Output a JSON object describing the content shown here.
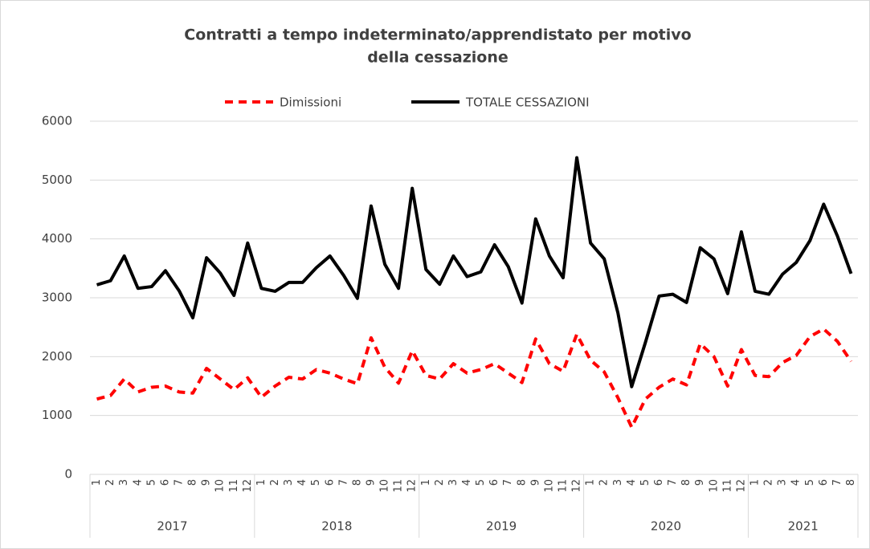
{
  "chart_data": {
    "type": "line",
    "title": [
      "Contratti a tempo indeterminato/apprendistato  per motivo",
      "della cessazione"
    ],
    "category_groups": [
      {
        "label": "2017",
        "categories": [
          1,
          2,
          3,
          4,
          5,
          6,
          7,
          8,
          9,
          10,
          11,
          12
        ]
      },
      {
        "label": "2018",
        "categories": [
          1,
          2,
          3,
          4,
          5,
          6,
          7,
          8,
          9,
          10,
          11,
          12
        ]
      },
      {
        "label": "2019",
        "categories": [
          1,
          2,
          3,
          4,
          5,
          6,
          7,
          8,
          9,
          10,
          11,
          12
        ]
      },
      {
        "label": "2020",
        "categories": [
          1,
          2,
          3,
          4,
          5,
          6,
          7,
          8,
          9,
          10,
          11,
          12
        ]
      },
      {
        "label": "2021",
        "categories": [
          1,
          2,
          3,
          4,
          5,
          6,
          7,
          8
        ]
      }
    ],
    "series": [
      {
        "name": "Dimissioni",
        "color": "#ff0000",
        "dashed": true,
        "values": [
          1280,
          1340,
          1620,
          1400,
          1480,
          1500,
          1400,
          1380,
          1800,
          1620,
          1440,
          1640,
          1310,
          1500,
          1650,
          1620,
          1780,
          1720,
          1620,
          1540,
          2320,
          1820,
          1550,
          2100,
          1680,
          1620,
          1880,
          1720,
          1780,
          1880,
          1720,
          1560,
          2300,
          1880,
          1750,
          2380,
          1940,
          1740,
          1300,
          800,
          1280,
          1480,
          1620,
          1520,
          2220,
          2000,
          1500,
          2120,
          1680,
          1660,
          1900,
          2020,
          2340,
          2470,
          2260,
          1920
        ]
      },
      {
        "name": "TOTALE CESSAZIONI",
        "color": "#000000",
        "dashed": false,
        "values": [
          3220,
          3290,
          3710,
          3160,
          3190,
          3460,
          3120,
          2660,
          3680,
          3420,
          3040,
          3930,
          3160,
          3110,
          3260,
          3260,
          3510,
          3710,
          3380,
          2990,
          4560,
          3570,
          3160,
          4860,
          3480,
          3230,
          3710,
          3360,
          3440,
          3900,
          3530,
          2910,
          4340,
          3710,
          3340,
          5380,
          3930,
          3660,
          2740,
          1490,
          2240,
          3030,
          3060,
          2920,
          3850,
          3660,
          3070,
          4120,
          3110,
          3060,
          3400,
          3600,
          3970,
          4590,
          4050,
          3410
        ]
      }
    ],
    "ylim": [
      0,
      6000
    ],
    "yticks": [
      0,
      1000,
      2000,
      3000,
      4000,
      5000,
      6000
    ],
    "grid": true,
    "legend": "top"
  }
}
